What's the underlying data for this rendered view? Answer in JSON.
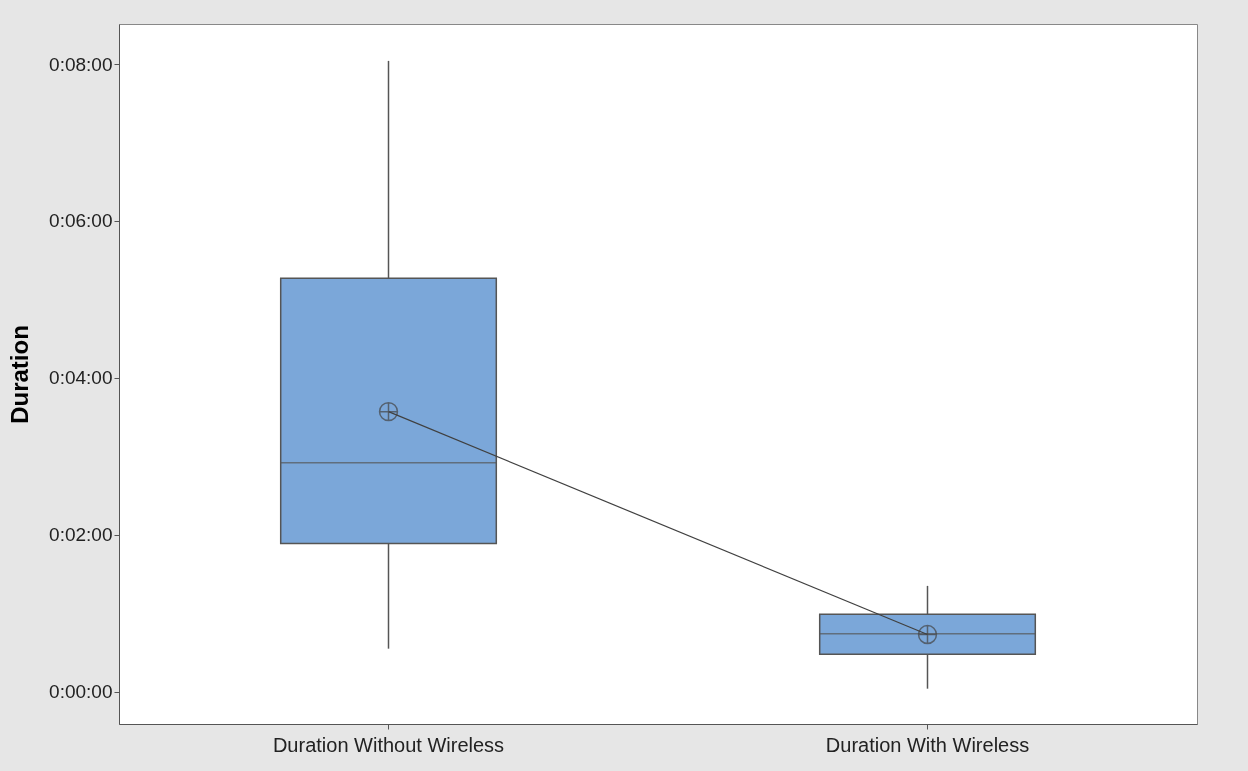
{
  "chart_data": {
    "type": "box",
    "ylabel": "Duration",
    "categories": [
      "Duration Without Wireless",
      "Duration With Wireless"
    ],
    "color": "#7ba7d9",
    "boxes": [
      {
        "low": 0.55,
        "q1": 1.89,
        "median": 2.92,
        "q3": 5.27,
        "high": 8.04,
        "mean": 3.57
      },
      {
        "low": 0.04,
        "q1": 0.48,
        "median": 0.74,
        "q3": 0.99,
        "high": 1.35,
        "mean": 0.73
      }
    ],
    "series": [
      {
        "type": "line",
        "color": "#404040",
        "values": [
          3.57,
          0.73
        ]
      }
    ],
    "ylim": [
      -0.41,
      8.51
    ],
    "yticks": [
      {
        "value": 0,
        "label": "0:00:00"
      },
      {
        "value": 2,
        "label": "0:02:00"
      },
      {
        "value": 4,
        "label": "0:04:00"
      },
      {
        "value": 6,
        "label": "0:06:00"
      },
      {
        "value": 8,
        "label": "0:08:00"
      }
    ]
  }
}
